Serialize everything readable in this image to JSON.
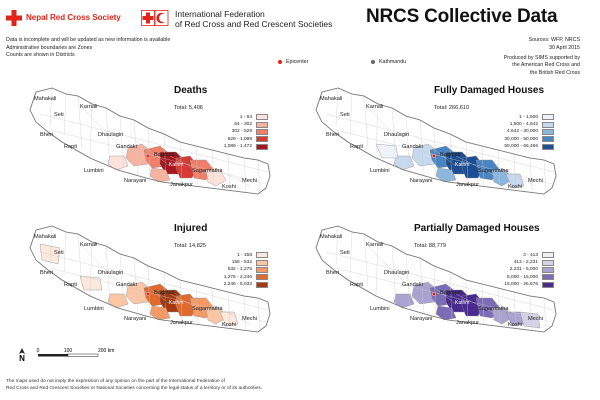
{
  "header": {
    "nrcs_name": "Nepal Red Cross Society",
    "ifrc_name_line1": "International Federation",
    "ifrc_name_line2": "of Red Cross and Red Crescent Societies",
    "title": "NRCS Collective Data"
  },
  "notes": [
    "Data is incomplete and will be updated as new information is available",
    "Administrative boundaries are Zones",
    "Counts are shown in Districts"
  ],
  "sources": {
    "line1": "Sources: WFP, NRCS",
    "line2": "30 April 2015"
  },
  "produced_by": [
    "Produced by SIMS supported by",
    "the American Red Cross and",
    "the British Red Cross"
  ],
  "map_legend": {
    "epicenter": "Epicenter",
    "kathmandu": "Kathmandu"
  },
  "zone_labels": {
    "mahakali": "Mahakali",
    "seti": "Seti",
    "karnali": "Karnali",
    "bheri": "Bheri",
    "dhaulagiri": "Dhaulagiri",
    "rapti": "Rapti",
    "gandaki": "Gandaki",
    "lumbini": "Lumbini",
    "narayani": "Narayani",
    "bagmati": "Bagmati",
    "janakpur": "Janakpur",
    "sagarmatha": "Sagarmatha",
    "koshi": "Koshi",
    "mechi": "Mechi",
    "kathmandu_short": "Kathm"
  },
  "panels": {
    "deaths": {
      "title": "Deaths",
      "total": "Total: 5,406",
      "legend": [
        "1 - 64",
        "64 - 302",
        "302 - 529",
        "529 - 1,089",
        "1,089 - 1,472"
      ],
      "colors": [
        "#fde3dc",
        "#f8b3a0",
        "#f07f6a",
        "#d63c36",
        "#a7161f"
      ]
    },
    "fully": {
      "title": "Fully Damaged Houses",
      "total": "Total: 266,610",
      "legend": [
        "1 - 1,500",
        "1,500 - 4,642",
        "4,642 - 30,000",
        "30,000 - 50,000",
        "50,000 - 66,466"
      ],
      "colors": [
        "#eef3fb",
        "#c6d9ef",
        "#8db6dd",
        "#4a85c3",
        "#1b4e93"
      ]
    },
    "injured": {
      "title": "Injured",
      "total": "Total: 14,825",
      "legend": [
        "1 - 158",
        "158 - 532",
        "532 - 1,275",
        "1,275 - 2,246",
        "2,246 - 5,033"
      ],
      "colors": [
        "#fde9dc",
        "#fbc6a4",
        "#f59a67",
        "#e06a2e",
        "#a53a12"
      ]
    },
    "partially": {
      "title": "Partially Damaged Houses",
      "total": "Total: 88,779",
      "legend": [
        "3 - 413",
        "413 - 2,231",
        "2,231 - 5,000",
        "5,000 - 15,000",
        "15,000 - 26,676"
      ],
      "colors": [
        "#f0eef6",
        "#d5d2e8",
        "#aaa3cf",
        "#7b6db5",
        "#4a2a8f"
      ]
    }
  },
  "scalebar": {
    "north": "N",
    "labels": [
      "0",
      "100",
      "200 km"
    ]
  },
  "disclaimer": [
    "The maps used do not imply the expression of any opinion on the part of the International Federation of",
    "Red Cross and Red Crescent Societies or National Societies concerning the legal status of a territory or of its authorities."
  ]
}
